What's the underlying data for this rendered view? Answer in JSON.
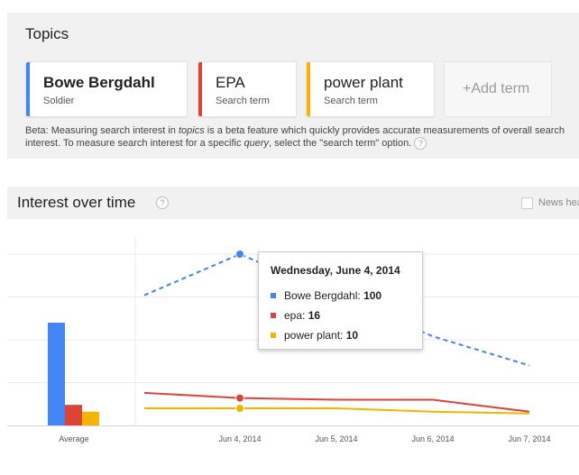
{
  "topics": {
    "title": "Topics",
    "terms": [
      {
        "name": "Bowe Bergdahl",
        "type": "Soldier",
        "color": "#4285f4"
      },
      {
        "name": "EPA",
        "type": "Search term",
        "color": "#db4437"
      },
      {
        "name": "power plant",
        "type": "Search term",
        "color": "#f4b400"
      }
    ],
    "add_term_label": "+Add term",
    "beta_note": {
      "prefix": "Beta: Measuring search interest in ",
      "em1": "topics",
      "mid": " is a beta feature which quickly provides accurate measurements of overall search interest. To measure search interest for a specific ",
      "em2": "query",
      "suffix": ", select the \"search term\" option."
    }
  },
  "interest": {
    "title": "Interest over time",
    "news_headlines_label": "News hea"
  },
  "help_icon_glyph": "?",
  "chart_data": {
    "type": "line",
    "x_labels": [
      "Jun 4, 2014",
      "Jun 5, 2014",
      "Jun 6, 2014",
      "Jun 7, 2014"
    ],
    "average_label": "Average",
    "series": [
      {
        "name": "Bowe Bergdahl",
        "color": "#4285f4",
        "dashed": true,
        "average": 60,
        "points": [
          {
            "x": "Jun 3, 2014",
            "y": 76
          },
          {
            "x": "Jun 4, 2014",
            "y": 100
          },
          {
            "x": "Jun 6, 2014",
            "y": 52
          },
          {
            "x": "Jun 7, 2014",
            "y": 35
          }
        ]
      },
      {
        "name": "epa",
        "color": "#db4437",
        "dashed": false,
        "average": 12,
        "points": [
          {
            "x": "Jun 3, 2014",
            "y": 19
          },
          {
            "x": "Jun 4, 2014",
            "y": 16
          },
          {
            "x": "Jun 5, 2014",
            "y": 15
          },
          {
            "x": "Jun 6, 2014",
            "y": 15
          },
          {
            "x": "Jun 7, 2014",
            "y": 8
          }
        ]
      },
      {
        "name": "power plant",
        "color": "#f4b400",
        "dashed": false,
        "average": 8,
        "points": [
          {
            "x": "Jun 3, 2014",
            "y": 10
          },
          {
            "x": "Jun 4, 2014",
            "y": 10
          },
          {
            "x": "Jun 5, 2014",
            "y": 10
          },
          {
            "x": "Jun 6, 2014",
            "y": 8
          },
          {
            "x": "Jun 7, 2014",
            "y": 7
          }
        ]
      }
    ],
    "ylim": [
      0,
      110
    ],
    "grid": true,
    "legend": "none"
  },
  "tooltip": {
    "date": "Wednesday, June 4, 2014",
    "rows": [
      {
        "label": "Bowe Bergdahl: ",
        "value": "100",
        "color": "#4285f4"
      },
      {
        "label": "epa: ",
        "value": "16",
        "color": "#db4437"
      },
      {
        "label": "power plant: ",
        "value": "10",
        "color": "#f4b400"
      }
    ]
  }
}
